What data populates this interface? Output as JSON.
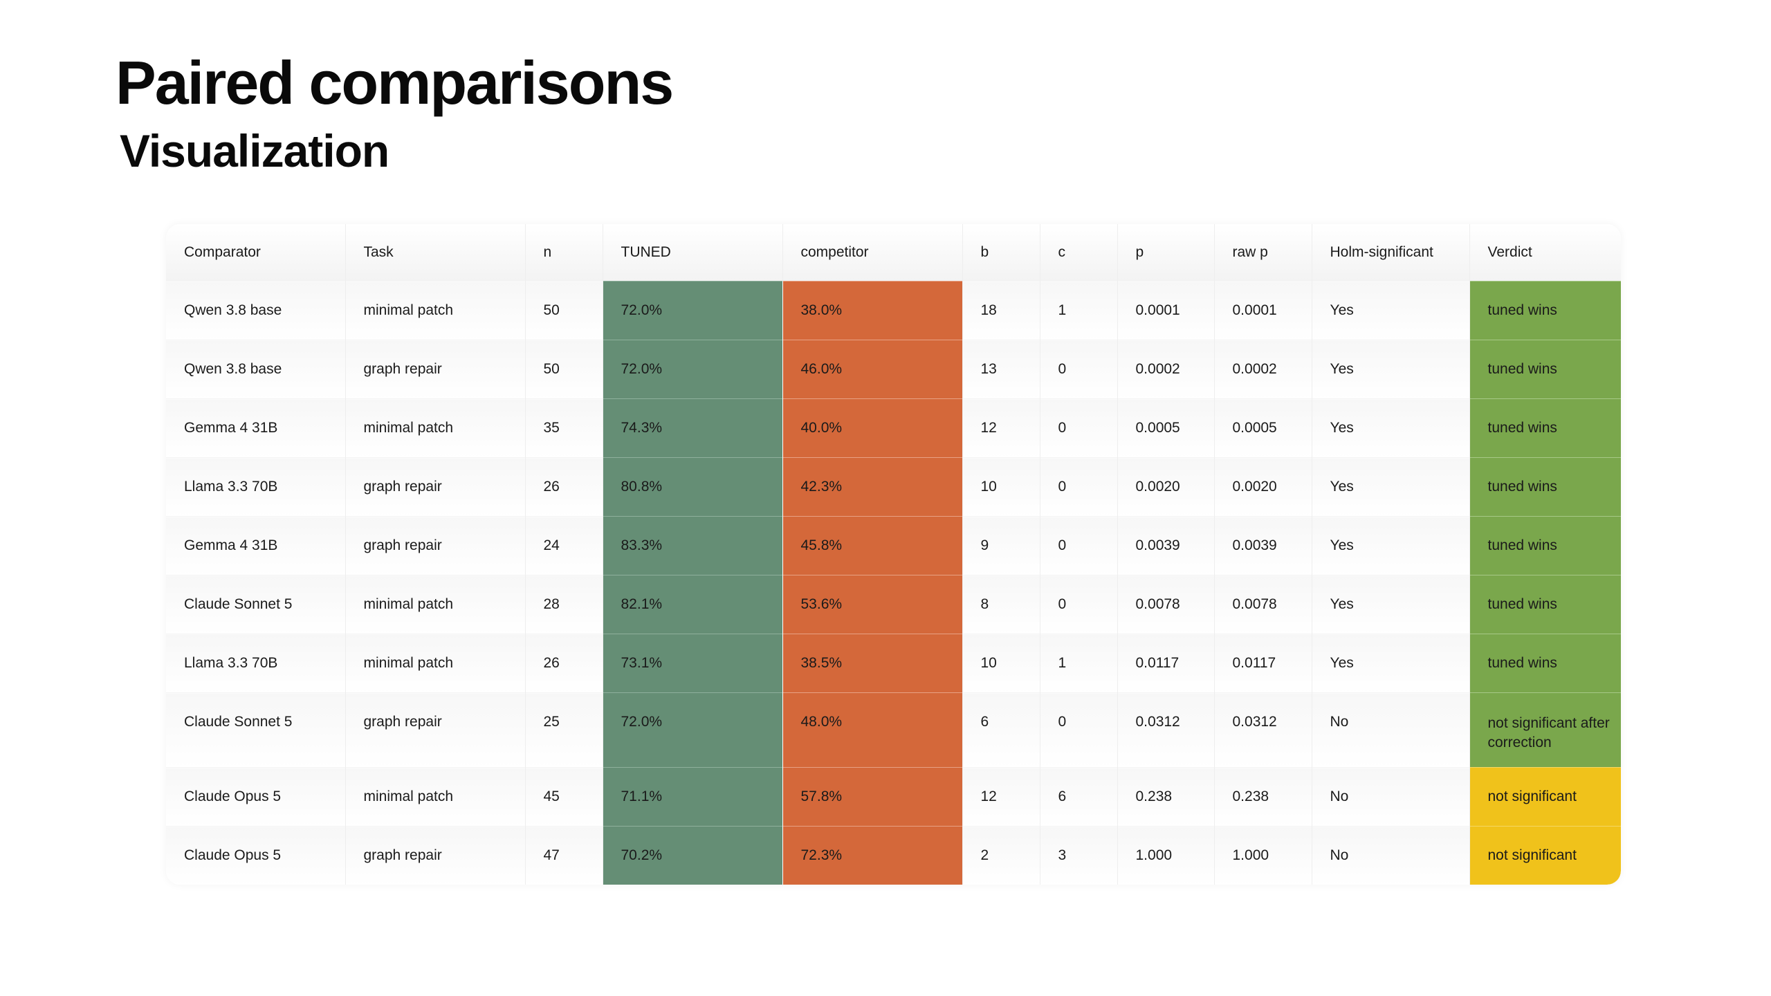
{
  "page": {
    "title": "Paired comparisons",
    "subtitle": "Visualization"
  },
  "colors": {
    "tuned_cell": "#658e75",
    "competitor_cell": "#d4683a",
    "verdict_win": "#7aa74c",
    "verdict_not_significant": "#f0c21b"
  },
  "table": {
    "columns": [
      "Comparator",
      "Task",
      "n",
      "TUNED",
      "competitor",
      "b",
      "c",
      "p",
      "raw p",
      "Holm-significant",
      "Verdict"
    ],
    "rows": [
      [
        "Qwen 3.8 base",
        "minimal patch",
        "50",
        "72.0%",
        "38.0%",
        "18",
        "1",
        "0.0001",
        "0.0001",
        "Yes",
        "tuned wins"
      ],
      [
        "Qwen 3.8 base",
        "graph repair",
        "50",
        "72.0%",
        "46.0%",
        "13",
        "0",
        "0.0002",
        "0.0002",
        "Yes",
        "tuned wins"
      ],
      [
        "Gemma 4 31B",
        "minimal patch",
        "35",
        "74.3%",
        "40.0%",
        "12",
        "0",
        "0.0005",
        "0.0005",
        "Yes",
        "tuned wins"
      ],
      [
        "Llama 3.3 70B",
        "graph repair",
        "26",
        "80.8%",
        "42.3%",
        "10",
        "0",
        "0.0020",
        "0.0020",
        "Yes",
        "tuned wins"
      ],
      [
        "Gemma 4 31B",
        "graph repair",
        "24",
        "83.3%",
        "45.8%",
        "9",
        "0",
        "0.0039",
        "0.0039",
        "Yes",
        "tuned wins"
      ],
      [
        "Claude Sonnet 5",
        "minimal patch",
        "28",
        "82.1%",
        "53.6%",
        "8",
        "0",
        "0.0078",
        "0.0078",
        "Yes",
        "tuned wins"
      ],
      [
        "Llama 3.3 70B",
        "minimal patch",
        "26",
        "73.1%",
        "38.5%",
        "10",
        "1",
        "0.0117",
        "0.0117",
        "Yes",
        "tuned wins"
      ],
      [
        "Claude Sonnet 5",
        "graph repair",
        "25",
        "72.0%",
        "48.0%",
        "6",
        "0",
        "0.0312",
        "0.0312",
        "No",
        "not significant after correction"
      ],
      [
        "Claude Opus 5",
        "minimal patch",
        "45",
        "71.1%",
        "57.8%",
        "12",
        "6",
        "0.238",
        "0.238",
        "No",
        "not significant"
      ],
      [
        "Claude Opus 5",
        "graph repair",
        "47",
        "70.2%",
        "72.3%",
        "2",
        "3",
        "1.000",
        "1.000",
        "No",
        "not significant"
      ]
    ]
  }
}
